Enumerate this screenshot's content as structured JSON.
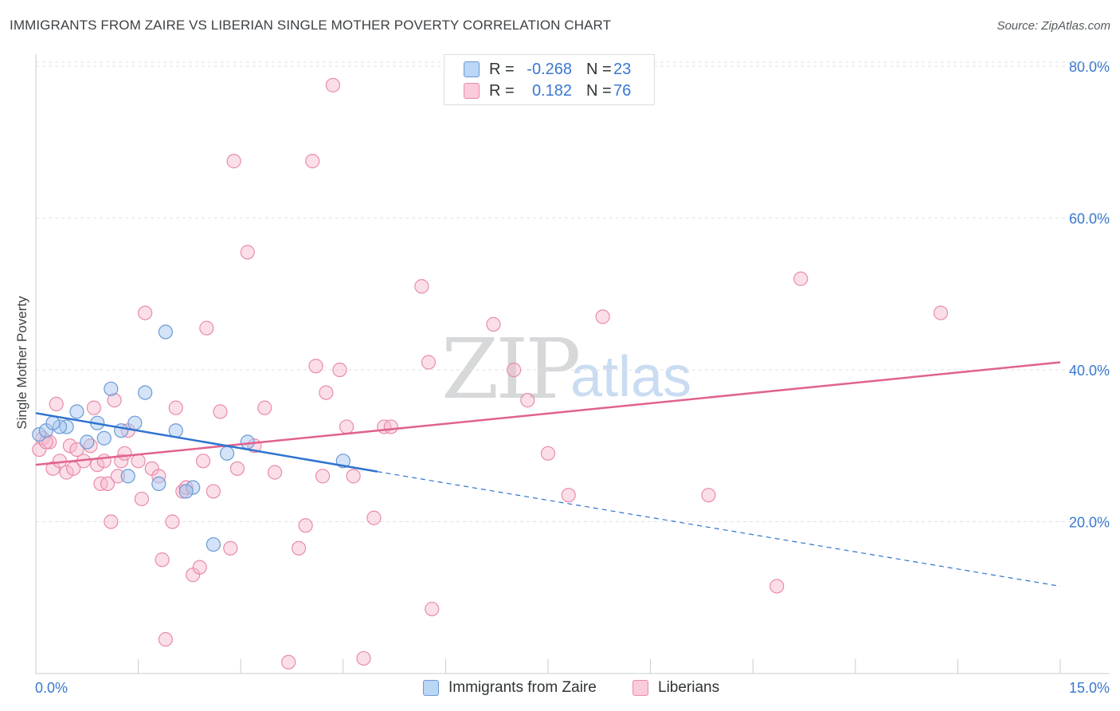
{
  "title": "IMMIGRANTS FROM ZAIRE VS LIBERIAN SINGLE MOTHER POVERTY CORRELATION CHART",
  "source": "Source: ZipAtlas.com",
  "watermark": {
    "zip": "ZIP",
    "atlas": "atlas"
  },
  "legend": {
    "series1": {
      "r_label": "R =",
      "r_value": "-0.268",
      "n_label": "N =",
      "n_value": "23"
    },
    "series2": {
      "r_label": "R =",
      "r_value": "0.182",
      "n_label": "N =",
      "n_value": "76"
    }
  },
  "bottom_legend": {
    "series1": "Immigrants from Zaire",
    "series2": "Liberians"
  },
  "colors": {
    "blue_fill": "#a9c8ef",
    "blue_stroke": "#6a9ad6",
    "blue_line": "#2f73cf",
    "pink_fill": "#f6b9cd",
    "pink_stroke": "#e98bab",
    "pink_line": "#e0628f",
    "axis_text": "#3a78d0",
    "grid": "#dde1e5"
  },
  "chart_data": {
    "type": "scatter",
    "title": "IMMIGRANTS FROM ZAIRE VS LIBERIAN SINGLE MOTHER POVERTY CORRELATION CHART",
    "xlabel": "",
    "ylabel": "Single Mother Poverty",
    "xlim": [
      0,
      15
    ],
    "ylim": [
      0,
      82
    ],
    "x_tick_labels": [
      "0.0%",
      "15.0%"
    ],
    "y_ticks": [
      20,
      40,
      60,
      80
    ],
    "y_tick_labels": [
      "20.0%",
      "40.0%",
      "60.0%",
      "80.0%"
    ],
    "series": [
      {
        "name": "Immigrants from Zaire",
        "r": -0.268,
        "n": 23,
        "points": [
          [
            0.05,
            31.5
          ],
          [
            0.15,
            32.0
          ],
          [
            0.45,
            32.5
          ],
          [
            0.6,
            34.5
          ],
          [
            0.75,
            30.5
          ],
          [
            0.9,
            33.0
          ],
          [
            1.0,
            31.0
          ],
          [
            1.1,
            37.5
          ],
          [
            1.35,
            26.0
          ],
          [
            1.6,
            37.0
          ],
          [
            1.9,
            45.0
          ],
          [
            2.05,
            32.0
          ],
          [
            1.8,
            25.0
          ],
          [
            2.3,
            24.5
          ],
          [
            2.6,
            17.0
          ],
          [
            3.1,
            30.5
          ],
          [
            2.8,
            29.0
          ],
          [
            4.5,
            28.0
          ],
          [
            2.2,
            24.0
          ],
          [
            1.25,
            32.0
          ],
          [
            0.35,
            32.5
          ],
          [
            1.45,
            33.0
          ],
          [
            0.25,
            33.0
          ]
        ],
        "trend": {
          "x": [
            0,
            5.0
          ],
          "y": [
            34.3,
            26.6
          ],
          "dashed_to": [
            15,
            11.5
          ]
        }
      },
      {
        "name": "Liberians",
        "r": 0.182,
        "n": 76,
        "points": [
          [
            0.05,
            29.5
          ],
          [
            0.1,
            31.0
          ],
          [
            0.2,
            30.5
          ],
          [
            0.25,
            27.0
          ],
          [
            0.3,
            35.5
          ],
          [
            0.35,
            28.0
          ],
          [
            0.45,
            26.5
          ],
          [
            0.5,
            30.0
          ],
          [
            0.55,
            27.0
          ],
          [
            0.6,
            29.5
          ],
          [
            0.7,
            28.0
          ],
          [
            0.8,
            30.0
          ],
          [
            0.85,
            35.0
          ],
          [
            0.9,
            27.5
          ],
          [
            0.95,
            25.0
          ],
          [
            1.0,
            28.0
          ],
          [
            1.05,
            25.0
          ],
          [
            1.1,
            20.0
          ],
          [
            1.15,
            36.0
          ],
          [
            1.2,
            26.0
          ],
          [
            1.25,
            28.0
          ],
          [
            1.3,
            29.0
          ],
          [
            1.35,
            32.0
          ],
          [
            1.5,
            28.0
          ],
          [
            1.55,
            23.0
          ],
          [
            1.6,
            47.5
          ],
          [
            1.7,
            27.0
          ],
          [
            1.8,
            26.0
          ],
          [
            1.85,
            15.0
          ],
          [
            1.9,
            4.5
          ],
          [
            2.0,
            20.0
          ],
          [
            2.05,
            35.0
          ],
          [
            2.15,
            24.0
          ],
          [
            2.3,
            13.0
          ],
          [
            2.4,
            14.0
          ],
          [
            2.45,
            28.0
          ],
          [
            2.5,
            45.5
          ],
          [
            2.6,
            24.0
          ],
          [
            2.7,
            34.5
          ],
          [
            2.85,
            16.5
          ],
          [
            2.9,
            67.5
          ],
          [
            2.95,
            27.0
          ],
          [
            3.1,
            55.5
          ],
          [
            3.2,
            30.0
          ],
          [
            3.35,
            35.0
          ],
          [
            3.5,
            26.5
          ],
          [
            3.7,
            1.5
          ],
          [
            3.85,
            16.5
          ],
          [
            3.95,
            19.5
          ],
          [
            4.05,
            67.5
          ],
          [
            4.1,
            40.5
          ],
          [
            4.2,
            26.0
          ],
          [
            4.25,
            37.0
          ],
          [
            4.35,
            77.5
          ],
          [
            4.45,
            40.0
          ],
          [
            4.55,
            32.5
          ],
          [
            4.65,
            26.0
          ],
          [
            4.8,
            2.0
          ],
          [
            4.95,
            20.5
          ],
          [
            5.1,
            32.5
          ],
          [
            5.2,
            32.5
          ],
          [
            5.65,
            51.0
          ],
          [
            5.75,
            41.0
          ],
          [
            5.8,
            8.5
          ],
          [
            6.7,
            46.0
          ],
          [
            7.0,
            40.0
          ],
          [
            7.2,
            36.0
          ],
          [
            7.5,
            29.0
          ],
          [
            7.8,
            23.5
          ],
          [
            8.3,
            47.0
          ],
          [
            9.85,
            23.5
          ],
          [
            11.2,
            52.0
          ],
          [
            10.85,
            11.5
          ],
          [
            13.25,
            47.5
          ],
          [
            2.2,
            24.5
          ],
          [
            0.15,
            30.5
          ]
        ],
        "trend": {
          "x": [
            0,
            15
          ],
          "y": [
            27.5,
            41.0
          ]
        }
      }
    ]
  }
}
